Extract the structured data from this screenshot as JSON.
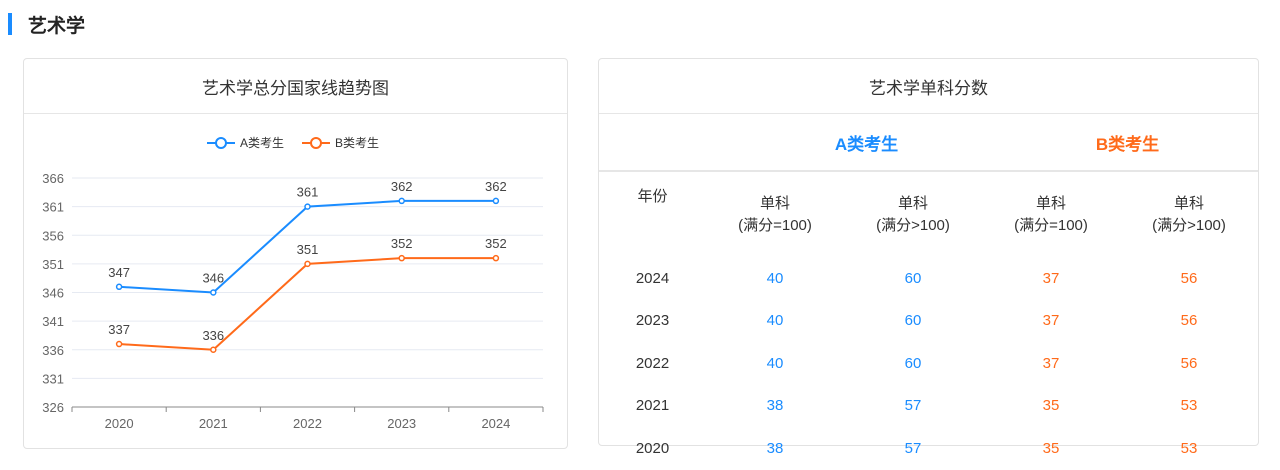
{
  "section_title": "艺术学",
  "chart_card": {
    "title": "艺术学总分国家线趋势图"
  },
  "chart_data": {
    "type": "line",
    "categories": [
      "2020",
      "2021",
      "2022",
      "2023",
      "2024"
    ],
    "series": [
      {
        "name": "A类考生",
        "values": [
          347,
          346,
          361,
          362,
          362
        ],
        "color": "#1a8cff"
      },
      {
        "name": "B类考生",
        "values": [
          337,
          336,
          351,
          352,
          352
        ],
        "color": "#ff6a1a"
      }
    ],
    "yticks": [
      326,
      331,
      336,
      341,
      346,
      351,
      356,
      361,
      366
    ],
    "ylim": [
      326,
      366
    ],
    "legend": "top-center",
    "grid": true
  },
  "table_card": {
    "title": "艺术学单科分数",
    "group_a": "A类考生",
    "group_b": "B类考生",
    "headers": [
      "年份",
      "单科\n(满分=100)",
      "单科\n(满分>100)",
      "单科\n(满分=100)",
      "单科\n(满分>100)"
    ],
    "rows": [
      [
        "2024",
        "40",
        "60",
        "37",
        "56"
      ],
      [
        "2023",
        "40",
        "60",
        "37",
        "56"
      ],
      [
        "2022",
        "40",
        "60",
        "37",
        "56"
      ],
      [
        "2021",
        "38",
        "57",
        "35",
        "53"
      ],
      [
        "2020",
        "38",
        "57",
        "35",
        "53"
      ]
    ]
  }
}
